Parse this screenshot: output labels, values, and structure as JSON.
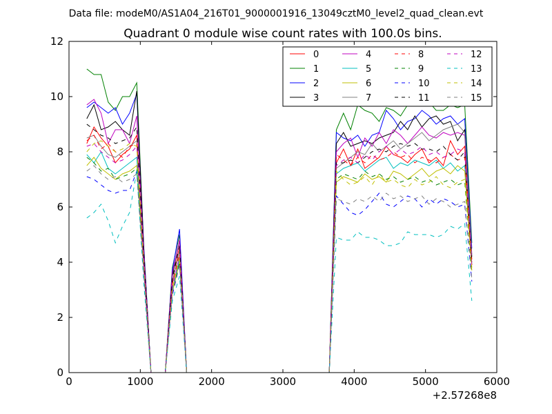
{
  "figure": {
    "suptitle": "Data file: modeM0/AS1A04_216T01_9000001916_13049cztM0_level2_quad_clean.evt"
  },
  "chart_data": {
    "type": "line",
    "title": "Quadrant 0 module wise count rates with 100.0s bins.",
    "xlabel": "",
    "ylabel": "",
    "xlim": [
      0,
      6000
    ],
    "ylim": [
      0,
      12
    ],
    "x_offset_label": "+2.57268e8",
    "x_ticks": [
      0,
      1000,
      2000,
      3000,
      4000,
      5000,
      6000
    ],
    "y_ticks": [
      0,
      2,
      4,
      6,
      8,
      10,
      12
    ],
    "legend": {
      "position": "top-right",
      "columns": 4
    },
    "x": [
      250,
      350,
      450,
      550,
      650,
      750,
      850,
      950,
      1050,
      1150,
      1250,
      1350,
      1450,
      1550,
      1650,
      1750,
      1850,
      1950,
      2050,
      2150,
      2250,
      2350,
      2450,
      2550,
      2650,
      2750,
      2850,
      2950,
      3050,
      3150,
      3250,
      3350,
      3450,
      3550,
      3650,
      3750,
      3850,
      3950,
      4050,
      4150,
      4250,
      4350,
      4450,
      4550,
      4650,
      4750,
      4850,
      4950,
      5050,
      5150,
      5250,
      5350,
      5450,
      5550,
      5650
    ],
    "series": [
      {
        "name": "0",
        "color": "#ff0000",
        "dash": "solid",
        "values": [
          8.3,
          8.9,
          8.5,
          8.2,
          7.6,
          7.9,
          8.1,
          8.6,
          3.7,
          0,
          0,
          0,
          3.2,
          4.6,
          0,
          0,
          0,
          0,
          0,
          0,
          0,
          0,
          0,
          0,
          0,
          0,
          0,
          0,
          0,
          0,
          0,
          0,
          0,
          0,
          0,
          7.6,
          8.1,
          7.5,
          8.1,
          7.4,
          7.6,
          7.8,
          8.2,
          7.9,
          7.8,
          7.6,
          7.9,
          8.1,
          7.6,
          7.8,
          7.5,
          8.4,
          7.9,
          8.2,
          4.1
        ]
      },
      {
        "name": "1",
        "color": "#008000",
        "dash": "solid",
        "values": [
          11.0,
          10.8,
          10.8,
          9.8,
          9.5,
          10.0,
          10.0,
          10.5,
          4.5,
          0,
          0,
          0,
          3.8,
          5.0,
          0,
          0,
          0,
          0,
          0,
          0,
          0,
          0,
          0,
          0,
          0,
          0,
          0,
          0,
          0,
          0,
          0,
          0,
          0,
          0,
          0,
          8.8,
          9.4,
          8.8,
          9.7,
          9.5,
          9.4,
          9.1,
          9.6,
          9.5,
          9.3,
          9.7,
          9.8,
          10.0,
          9.8,
          9.5,
          9.5,
          9.7,
          9.6,
          9.7,
          4.7
        ]
      },
      {
        "name": "2",
        "color": "#0000ff",
        "dash": "solid",
        "values": [
          9.6,
          9.8,
          9.6,
          9.4,
          9.6,
          9.0,
          9.4,
          10.1,
          4.5,
          0,
          0,
          0,
          3.7,
          5.2,
          0,
          0,
          0,
          0,
          0,
          0,
          0,
          0,
          0,
          0,
          0,
          0,
          0,
          0,
          0,
          0,
          0,
          0,
          0,
          0,
          0,
          8.7,
          8.5,
          8.4,
          8.6,
          8.2,
          8.6,
          8.7,
          9.5,
          9.2,
          8.8,
          9.1,
          9.2,
          9.5,
          9.3,
          9.0,
          9.2,
          9.3,
          9.0,
          9.2,
          4.5
        ]
      },
      {
        "name": "3",
        "color": "#000000",
        "dash": "solid",
        "values": [
          9.2,
          9.7,
          8.8,
          8.9,
          9.1,
          8.8,
          8.6,
          10.2,
          4.4,
          0,
          0,
          0,
          3.5,
          4.8,
          0,
          0,
          0,
          0,
          0,
          0,
          0,
          0,
          0,
          0,
          0,
          0,
          0,
          0,
          0,
          0,
          0,
          0,
          0,
          0,
          0,
          8.3,
          8.7,
          8.2,
          8.3,
          8.4,
          8.3,
          8.5,
          8.6,
          8.7,
          9.1,
          8.8,
          9.3,
          8.9,
          9.2,
          9.3,
          9.0,
          9.1,
          8.4,
          8.8,
          4.2
        ]
      },
      {
        "name": "4",
        "color": "#bf00bf",
        "dash": "solid",
        "values": [
          9.7,
          9.9,
          9.4,
          8.3,
          8.8,
          8.8,
          8.3,
          9.3,
          4.3,
          0,
          0,
          0,
          3.6,
          4.8,
          0,
          0,
          0,
          0,
          0,
          0,
          0,
          0,
          0,
          0,
          0,
          0,
          0,
          0,
          0,
          0,
          0,
          0,
          0,
          0,
          0,
          8.0,
          8.3,
          8.5,
          7.8,
          8.5,
          8.2,
          8.7,
          8.3,
          8.8,
          8.6,
          8.3,
          8.6,
          8.9,
          8.6,
          8.5,
          8.7,
          8.6,
          8.7,
          8.6,
          4.3
        ]
      },
      {
        "name": "5",
        "color": "#00bfbf",
        "dash": "solid",
        "values": [
          7.9,
          7.6,
          8.0,
          7.4,
          7.2,
          7.4,
          7.6,
          7.8,
          3.8,
          0,
          0,
          0,
          3.0,
          4.1,
          0,
          0,
          0,
          0,
          0,
          0,
          0,
          0,
          0,
          0,
          0,
          0,
          0,
          0,
          0,
          0,
          0,
          0,
          0,
          0,
          0,
          7.2,
          7.4,
          7.5,
          7.6,
          7.3,
          7.5,
          7.7,
          7.8,
          7.4,
          7.6,
          7.5,
          7.7,
          7.6,
          7.5,
          7.7,
          7.4,
          7.6,
          7.3,
          7.5,
          3.9
        ]
      },
      {
        "name": "6",
        "color": "#bfbf00",
        "dash": "solid",
        "values": [
          7.5,
          7.8,
          7.4,
          7.2,
          7.0,
          7.2,
          7.3,
          7.5,
          3.7,
          0,
          0,
          0,
          2.9,
          4.0,
          0,
          0,
          0,
          0,
          0,
          0,
          0,
          0,
          0,
          0,
          0,
          0,
          0,
          0,
          0,
          0,
          0,
          0,
          0,
          0,
          0,
          6.9,
          7.1,
          7.0,
          6.9,
          7.2,
          7.0,
          7.1,
          6.9,
          7.3,
          7.2,
          7.0,
          7.2,
          7.4,
          7.1,
          7.3,
          7.4,
          7.2,
          7.5,
          7.3,
          3.8
        ]
      },
      {
        "name": "7",
        "color": "#808080",
        "dash": "solid",
        "values": [
          8.5,
          8.6,
          8.2,
          7.9,
          7.8,
          8.0,
          8.2,
          8.4,
          3.9,
          0,
          0,
          0,
          3.3,
          4.4,
          0,
          0,
          0,
          0,
          0,
          0,
          0,
          0,
          0,
          0,
          0,
          0,
          0,
          0,
          0,
          0,
          0,
          0,
          0,
          0,
          0,
          7.4,
          7.6,
          7.8,
          8.0,
          7.9,
          8.3,
          8.0,
          8.2,
          8.4,
          8.1,
          8.3,
          8.5,
          8.7,
          8.4,
          8.6,
          8.8,
          8.9,
          9.0,
          8.7,
          4.2
        ]
      },
      {
        "name": "8",
        "color": "#ff0000",
        "dash": "dashed",
        "values": [
          8.4,
          8.6,
          8.1,
          8.3,
          8.0,
          7.8,
          8.2,
          8.3,
          3.9,
          0,
          0,
          0,
          3.2,
          4.3,
          0,
          0,
          0,
          0,
          0,
          0,
          0,
          0,
          0,
          0,
          0,
          0,
          0,
          0,
          0,
          0,
          0,
          0,
          0,
          0,
          0,
          7.9,
          7.7,
          7.5,
          7.8,
          7.6,
          7.9,
          7.7,
          7.8,
          8.0,
          7.8,
          7.9,
          7.6,
          7.8,
          7.7,
          7.6,
          7.8,
          7.9,
          7.7,
          7.8,
          3.9
        ]
      },
      {
        "name": "9",
        "color": "#008000",
        "dash": "dashed",
        "values": [
          7.8,
          7.6,
          7.3,
          7.4,
          7.0,
          7.1,
          7.2,
          7.4,
          3.6,
          0,
          0,
          0,
          2.9,
          4.0,
          0,
          0,
          0,
          0,
          0,
          0,
          0,
          0,
          0,
          0,
          0,
          0,
          0,
          0,
          0,
          0,
          0,
          0,
          0,
          0,
          0,
          7.0,
          7.2,
          7.1,
          7.0,
          7.3,
          7.1,
          7.2,
          7.0,
          7.1,
          6.9,
          7.0,
          7.1,
          6.9,
          7.0,
          6.8,
          6.9,
          7.0,
          6.8,
          6.9,
          3.6
        ]
      },
      {
        "name": "10",
        "color": "#0000ff",
        "dash": "dashed",
        "values": [
          7.1,
          7.0,
          6.8,
          6.6,
          6.5,
          6.6,
          6.6,
          7.3,
          3.5,
          0,
          0,
          0,
          2.8,
          3.9,
          0,
          0,
          0,
          0,
          0,
          0,
          0,
          0,
          0,
          0,
          0,
          0,
          0,
          0,
          0,
          0,
          0,
          0,
          0,
          0,
          0,
          6.4,
          6.1,
          5.8,
          5.7,
          5.9,
          6.2,
          6.5,
          6.1,
          6.0,
          6.2,
          6.4,
          6.3,
          6.0,
          6.3,
          6.1,
          6.3,
          6.2,
          6.0,
          6.1,
          3.3
        ]
      },
      {
        "name": "11",
        "color": "#000000",
        "dash": "dashed",
        "values": [
          9.0,
          8.8,
          8.6,
          8.5,
          8.3,
          8.4,
          8.5,
          8.9,
          4.2,
          0,
          0,
          0,
          3.4,
          4.6,
          0,
          0,
          0,
          0,
          0,
          0,
          0,
          0,
          0,
          0,
          0,
          0,
          0,
          0,
          0,
          0,
          0,
          0,
          0,
          0,
          0,
          7.6,
          7.6,
          7.7,
          7.6,
          7.8,
          8.0,
          8.1,
          8.0,
          8.2,
          8.3,
          8.2,
          8.3,
          8.1,
          8.1,
          8.0,
          8.2,
          7.9,
          7.7,
          8.0,
          4.0
        ]
      },
      {
        "name": "12",
        "color": "#bf00bf",
        "dash": "dashed",
        "values": [
          8.2,
          8.3,
          8.0,
          7.8,
          7.6,
          7.7,
          7.9,
          8.2,
          3.8,
          0,
          0,
          0,
          3.1,
          4.2,
          0,
          0,
          0,
          0,
          0,
          0,
          0,
          0,
          0,
          0,
          0,
          0,
          0,
          0,
          0,
          0,
          0,
          0,
          0,
          0,
          0,
          7.5,
          7.7,
          7.8,
          7.6,
          7.9,
          7.7,
          8.0,
          8.2,
          7.9,
          8.1,
          7.9,
          8.0,
          8.2,
          7.9,
          8.0,
          7.8,
          7.9,
          8.1,
          8.0,
          3.9
        ]
      },
      {
        "name": "13",
        "color": "#00bfbf",
        "dash": "dashed",
        "values": [
          5.6,
          5.8,
          6.1,
          5.5,
          4.7,
          5.3,
          5.8,
          7.3,
          3.2,
          0,
          0,
          0,
          2.6,
          3.5,
          0,
          0,
          0,
          0,
          0,
          0,
          0,
          0,
          0,
          0,
          0,
          0,
          0,
          0,
          0,
          0,
          0,
          0,
          0,
          0,
          0,
          4.9,
          4.8,
          4.8,
          5.1,
          4.9,
          4.9,
          4.8,
          4.6,
          4.6,
          4.7,
          5.1,
          5.0,
          5.0,
          5.0,
          4.9,
          5.0,
          5.3,
          5.2,
          5.4,
          2.6
        ]
      },
      {
        "name": "14",
        "color": "#bfbf00",
        "dash": "dashed",
        "values": [
          8.0,
          8.3,
          8.4,
          8.2,
          8.0,
          8.1,
          8.3,
          8.2,
          3.8,
          0,
          0,
          0,
          3.0,
          4.2,
          0,
          0,
          0,
          0,
          0,
          0,
          0,
          0,
          0,
          0,
          0,
          0,
          0,
          0,
          0,
          0,
          0,
          0,
          0,
          0,
          0,
          7.3,
          7.0,
          6.8,
          6.9,
          7.1,
          6.8,
          7.2,
          6.9,
          7.0,
          6.8,
          6.7,
          7.0,
          6.8,
          6.9,
          7.1,
          6.8,
          6.7,
          6.9,
          7.0,
          3.7
        ]
      },
      {
        "name": "15",
        "color": "#808080",
        "dash": "dashed",
        "values": [
          7.3,
          7.5,
          7.2,
          7.0,
          7.1,
          6.9,
          7.0,
          7.2,
          3.6,
          0,
          0,
          0,
          2.9,
          3.9,
          0,
          0,
          0,
          0,
          0,
          0,
          0,
          0,
          0,
          0,
          0,
          0,
          0,
          0,
          0,
          0,
          0,
          0,
          0,
          0,
          0,
          6.3,
          6.2,
          6.1,
          6.3,
          6.2,
          6.4,
          6.2,
          6.5,
          6.3,
          6.4,
          6.2,
          6.3,
          6.4,
          6.1,
          6.3,
          6.2,
          6.0,
          6.1,
          6.2,
          3.4
        ]
      }
    ]
  }
}
